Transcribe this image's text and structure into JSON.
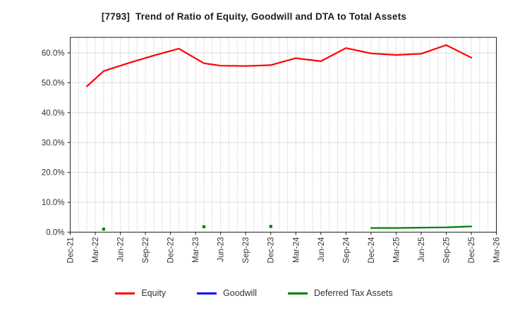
{
  "header": {
    "title": "[7793]  Trend of Ratio of Equity, Goodwill and DTA to Total Assets"
  },
  "colors": {
    "equity": "#ff0000",
    "goodwill": "#0000ff",
    "dta": "#008000",
    "grid_vertical": "#b3b3b3",
    "grid_horizontal": "#999999",
    "axis": "#222222",
    "tick_text": "#333333",
    "background": "#ffffff"
  },
  "legend": {
    "items": [
      {
        "label": "Equity",
        "color": "#ff0000"
      },
      {
        "label": "Goodwill",
        "color": "#0000ff"
      },
      {
        "label": "Deferred Tax Assets",
        "color": "#008000"
      }
    ]
  },
  "chart_data": {
    "type": "line",
    "title": "[7793]  Trend of Ratio of Equity, Goodwill and DTA to Total Assets",
    "grid": true,
    "legend_position": "bottom",
    "y_axis": {
      "unit": "%",
      "min": 0,
      "max": 65,
      "tick_step": 10,
      "tick_labels": [
        "0.0%",
        "10.0%",
        "20.0%",
        "30.0%",
        "40.0%",
        "50.0%",
        "60.0%"
      ]
    },
    "x_axis": {
      "start": "Dec-21",
      "end": "Mar-26",
      "months_total": 51,
      "major_tick_every_months": 3,
      "minor_gridline_every_months": 1,
      "tick_labels": [
        "Dec-21",
        "Mar-22",
        "Jun-22",
        "Sep-22",
        "Dec-22",
        "Mar-23",
        "Jun-23",
        "Sep-23",
        "Dec-23",
        "Mar-24",
        "Jun-24",
        "Sep-24",
        "Dec-24",
        "Mar-25",
        "Jun-25",
        "Sep-25",
        "Dec-25",
        "Mar-26"
      ],
      "label_rotation_deg": 90
    },
    "series": [
      {
        "name": "Equity",
        "color": "#ff0000",
        "style": "solid-line",
        "points": [
          {
            "x": "Jan-22",
            "m": 2,
            "y": 48.8
          },
          {
            "x": "Mar-22",
            "m": 4,
            "y": 53.9
          },
          {
            "x": "Jun-22",
            "m": 7,
            "y": 56.6
          },
          {
            "x": "Sep-22",
            "m": 10,
            "y": 59.1
          },
          {
            "x": "Dec-22",
            "m": 13,
            "y": 61.4
          },
          {
            "x": "Mar-23",
            "m": 16,
            "y": 56.5
          },
          {
            "x": "Jun-23",
            "m": 18,
            "y": 55.7
          },
          {
            "x": "Sep-23",
            "m": 21,
            "y": 55.6
          },
          {
            "x": "Dec-23",
            "m": 24,
            "y": 55.9
          },
          {
            "x": "Mar-24",
            "m": 27,
            "y": 58.2
          },
          {
            "x": "Jun-24",
            "m": 30,
            "y": 57.2
          },
          {
            "x": "Sep-24",
            "m": 33,
            "y": 61.6
          },
          {
            "x": "Dec-24",
            "m": 36,
            "y": 59.8
          },
          {
            "x": "Mar-25",
            "m": 39,
            "y": 59.3
          },
          {
            "x": "Jun-25",
            "m": 42,
            "y": 59.7
          },
          {
            "x": "Sep-25",
            "m": 45,
            "y": 62.6
          },
          {
            "x": "Dec-25",
            "m": 48,
            "y": 58.4
          }
        ],
        "dots": []
      },
      {
        "name": "Goodwill",
        "color": "#0000ff",
        "style": "solid-line",
        "visible": false,
        "points": [],
        "dots": []
      },
      {
        "name": "Deferred Tax Assets",
        "color": "#008000",
        "style": "solid-line-with-isolated-dots",
        "points": [
          {
            "x": "Dec-24",
            "m": 36,
            "y": 1.4
          },
          {
            "x": "Mar-25",
            "m": 39,
            "y": 1.4
          },
          {
            "x": "Jun-25",
            "m": 42,
            "y": 1.5
          },
          {
            "x": "Sep-25",
            "m": 45,
            "y": 1.6
          },
          {
            "x": "Dec-25",
            "m": 48,
            "y": 1.9
          }
        ],
        "dots": [
          {
            "x": "Mar-22",
            "m": 4,
            "y": 1.0
          },
          {
            "x": "Mar-23",
            "m": 16,
            "y": 1.8
          },
          {
            "x": "Dec-23",
            "m": 24,
            "y": 1.9
          }
        ]
      }
    ]
  }
}
